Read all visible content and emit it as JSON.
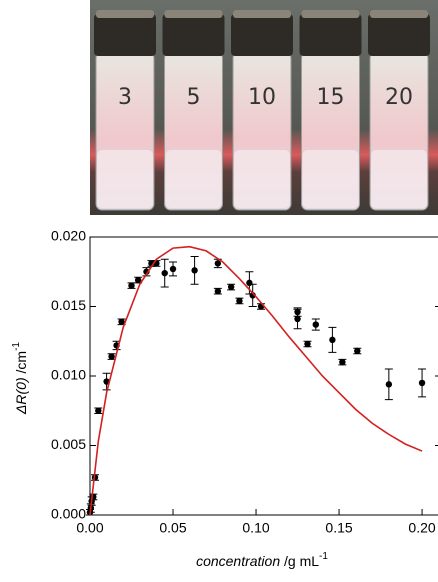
{
  "photo": {
    "labels": [
      "3",
      "5",
      "10",
      "15",
      "20"
    ]
  },
  "chart_data": {
    "type": "scatter",
    "ylabel": {
      "main": "ΔR(0)",
      "unit": " /cm",
      "sup": "-1"
    },
    "xlabel": {
      "main": "concentration",
      "unit": " /g mL",
      "sup": "-1"
    },
    "xlim": [
      0,
      0.209
    ],
    "ylim": [
      0,
      0.02
    ],
    "xticks": [
      {
        "value": 0,
        "label": "0.00"
      },
      0.05,
      {
        "value": 0.1,
        "label": "0.10"
      },
      0.15,
      {
        "value": 0.2,
        "label": "0.20"
      }
    ],
    "yticks": [
      {
        "value": 0,
        "label": "0.000"
      },
      0.005,
      {
        "value": 0.01,
        "label": "0.010"
      },
      0.015,
      {
        "value": 0.02,
        "label": "0.020"
      }
    ],
    "series": [
      {
        "type": "scatter",
        "color": "#000000",
        "x": [
          0,
          0.0005,
          0.001,
          0.002,
          0.003,
          0.005,
          0.01,
          0.013,
          0.016,
          0.019,
          0.025,
          0.029,
          0.034,
          0.037,
          0.04,
          0.045,
          0.05,
          0.063,
          0.077,
          0.077,
          0.085,
          0.09,
          0.096,
          0.098,
          0.103,
          0.125,
          0.125,
          0.131,
          0.136,
          0.146,
          0.152,
          0.161,
          0.18,
          0.2
        ],
        "values": [
          0.0002,
          0.0005,
          0.001,
          0.0013,
          0.0027,
          0.0075,
          0.0096,
          0.0114,
          0.0122,
          0.0139,
          0.0165,
          0.0169,
          0.0175,
          0.0181,
          0.0181,
          0.0174,
          0.0177,
          0.0176,
          0.0181,
          0.0161,
          0.0164,
          0.0154,
          0.0167,
          0.0158,
          0.015,
          0.0141,
          0.0146,
          0.0123,
          0.0137,
          0.0126,
          0.011,
          0.0118,
          0.0094,
          0.0095
        ],
        "errors": [
          0.0002,
          0.0003,
          0.0003,
          0.0002,
          0.0002,
          0.0002,
          0.0006,
          0.0002,
          0.0003,
          0.0002,
          0.0002,
          0.0002,
          0.0003,
          0.0002,
          0.0002,
          0.001,
          0.0005,
          0.001,
          0.0003,
          0.0002,
          0.0002,
          0.0002,
          0.0008,
          0.0008,
          0.0002,
          0.0007,
          0.0003,
          0.0002,
          0.0004,
          0.0009,
          0.0002,
          0.0002,
          0.0011,
          0.001
        ]
      },
      {
        "type": "line",
        "color": "#d42020",
        "x": [
          0,
          0.005,
          0.01,
          0.02,
          0.03,
          0.04,
          0.05,
          0.06,
          0.07,
          0.08,
          0.09,
          0.1,
          0.11,
          0.12,
          0.13,
          0.14,
          0.15,
          0.16,
          0.17,
          0.18,
          0.19,
          0.2
        ],
        "values": [
          0,
          0.0053,
          0.0088,
          0.0135,
          0.0166,
          0.0184,
          0.0192,
          0.0193,
          0.019,
          0.0182,
          0.017,
          0.0157,
          0.0143,
          0.0128,
          0.0114,
          0.01,
          0.0088,
          0.0076,
          0.0066,
          0.0058,
          0.0051,
          0.0046
        ]
      }
    ]
  }
}
